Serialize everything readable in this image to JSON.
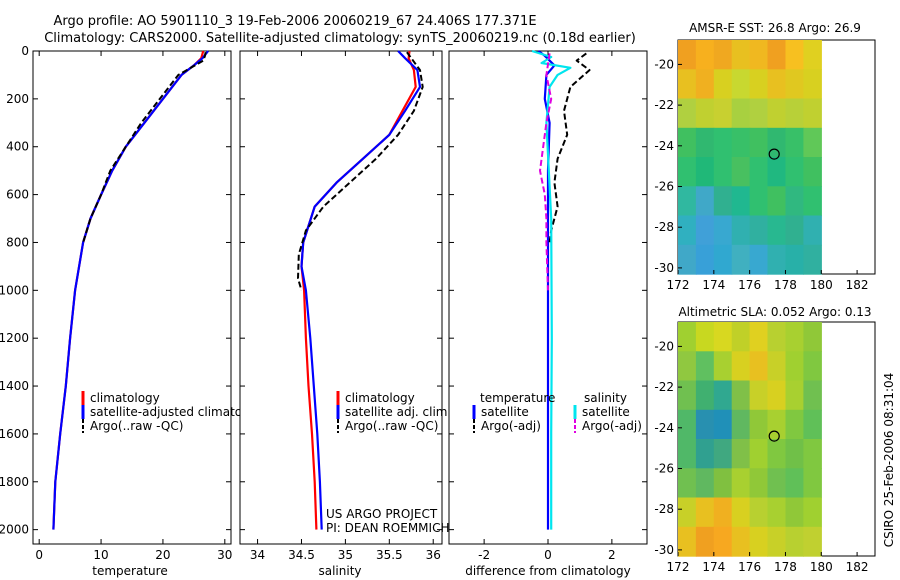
{
  "header": {
    "line1": "Argo profile: AO 5901110_3 19-Feb-2006 20060219_67 24.406S 177.371E",
    "line2": "Climatology: CARS2000. Satellite-adjusted climatology: synTS_20060219.nc (0.18d earlier)"
  },
  "side_label": "CSIRO 25-Feb-2006 08:31:04",
  "colors": {
    "red": "#ff0000",
    "blue": "#0000ff",
    "black": "#000000",
    "cyan": "#00e5ee",
    "magenta": "#e000e0"
  },
  "chart_data": [
    {
      "type": "line",
      "xlabel": "temperature",
      "xlim": [
        -1,
        31
      ],
      "ylim": [
        2060,
        0
      ],
      "xticks": [
        0,
        10,
        20,
        30
      ],
      "yticks": [
        0,
        200,
        400,
        600,
        800,
        1000,
        1200,
        1400,
        1600,
        1800,
        2000
      ],
      "legend": {
        "placement": "bottom-center",
        "entries": [
          "climatology",
          "satellite-adjusted climatology",
          "Argo(..raw -QC)"
        ]
      },
      "series": [
        {
          "name": "climatology",
          "color": "red",
          "dash": "solid",
          "x": [
            26.5,
            26.2,
            25,
            23,
            20,
            17,
            14,
            11.8,
            10,
            8.3,
            7.1,
            5.8,
            5,
            4.3,
            3.4,
            2.6,
            2.3
          ],
          "y": [
            0,
            30,
            60,
            100,
            200,
            300,
            400,
            500,
            600,
            700,
            800,
            1000,
            1200,
            1400,
            1600,
            1800,
            2000
          ]
        },
        {
          "name": "satellite-adjusted climatology",
          "color": "blue",
          "dash": "solid",
          "x": [
            27.3,
            26.4,
            25,
            23,
            20,
            17,
            14,
            11.8,
            10,
            8.3,
            7.1,
            5.8,
            5,
            4.3,
            3.4,
            2.6,
            2.3
          ],
          "y": [
            0,
            30,
            60,
            100,
            200,
            300,
            400,
            500,
            600,
            700,
            800,
            1000,
            1200,
            1400,
            1600,
            1800,
            2000
          ]
        },
        {
          "name": "Argo(..raw -QC)",
          "color": "black",
          "dash": "dashed",
          "x": [
            26.9,
            26.8,
            26.5,
            24.5,
            22.5,
            19.5,
            16.5,
            14,
            11.5,
            10,
            8.3,
            7.1
          ],
          "y": [
            5,
            20,
            40,
            70,
            100,
            200,
            300,
            400,
            500,
            600,
            700,
            800
          ]
        }
      ]
    },
    {
      "type": "line",
      "xlabel": "salinity",
      "xlim": [
        33.8,
        36.1
      ],
      "ylim": [
        2060,
        0
      ],
      "xticks": [
        34,
        34.5,
        35,
        35.5,
        36
      ],
      "legend": {
        "placement": "bottom-center",
        "entries": [
          "climatology",
          "satellite adj. clim.",
          "Argo(..raw -QC)"
        ]
      },
      "annotations": [
        "US ARGO PROJECT",
        "PI: DEAN ROEMMICH"
      ],
      "series": [
        {
          "name": "climatology",
          "color": "red",
          "dash": "solid",
          "x": [
            35.73,
            35.72,
            35.78,
            35.8,
            35.65,
            35.5,
            35.2,
            34.9,
            34.65,
            34.52,
            34.5,
            34.53,
            34.55,
            34.58,
            34.62,
            34.65,
            34.67
          ],
          "y": [
            0,
            30,
            80,
            150,
            250,
            350,
            450,
            550,
            650,
            800,
            900,
            1000,
            1200,
            1400,
            1600,
            1800,
            2000
          ]
        },
        {
          "name": "satellite adj. clim.",
          "color": "blue",
          "dash": "solid",
          "x": [
            35.6,
            35.68,
            35.82,
            35.85,
            35.68,
            35.5,
            35.2,
            34.9,
            34.65,
            34.52,
            34.5,
            34.55,
            34.6,
            34.64,
            34.68,
            34.71,
            34.73
          ],
          "y": [
            0,
            30,
            80,
            150,
            250,
            350,
            450,
            550,
            650,
            800,
            900,
            1000,
            1200,
            1400,
            1600,
            1800,
            2000
          ]
        },
        {
          "name": "Argo(..raw -QC)",
          "color": "black",
          "dash": "dashed",
          "x": [
            35.7,
            35.75,
            35.85,
            35.88,
            35.78,
            35.6,
            35.35,
            35.05,
            34.75,
            34.55,
            34.47,
            34.46,
            34.5
          ],
          "y": [
            5,
            30,
            80,
            150,
            250,
            350,
            450,
            550,
            650,
            750,
            850,
            950,
            1000
          ]
        }
      ]
    },
    {
      "type": "line",
      "xlabel": "difference from climatology",
      "xlim": [
        -3.1,
        3.1
      ],
      "ylim": [
        2060,
        0
      ],
      "xticks": [
        -2,
        0,
        2
      ],
      "legend": {
        "placement": "bottom",
        "groups": [
          "temperature",
          "salinity"
        ],
        "entries": [
          "satellite",
          "Argo(-adj)",
          "satellite",
          "Argo(-adj)"
        ]
      },
      "series": [
        {
          "name": "temperature satellite",
          "color": "blue",
          "dash": "solid",
          "x": [
            -0.3,
            -0.1,
            0.2,
            -0.05,
            -0.1,
            0.05,
            0,
            0,
            0,
            0,
            0
          ],
          "y": [
            0,
            20,
            60,
            100,
            200,
            300,
            500,
            800,
            1200,
            1600,
            2000
          ]
        },
        {
          "name": "temperature Argo(-adj)",
          "color": "black",
          "dash": "dashed",
          "x": [
            1.2,
            0.9,
            1.3,
            0.7,
            0.5,
            0.6,
            0.3,
            0.2,
            0.3,
            0.1,
            0.05
          ],
          "y": [
            10,
            40,
            80,
            150,
            250,
            350,
            450,
            550,
            650,
            750,
            800
          ]
        },
        {
          "name": "salinity satellite",
          "color": "cyan",
          "dash": "solid",
          "x": [
            -0.5,
            0.1,
            -0.2,
            0.7,
            0.3,
            0.05,
            -0.05,
            0.1,
            0.12,
            0.1,
            0.1
          ],
          "y": [
            0,
            25,
            50,
            70,
            100,
            150,
            300,
            700,
            1200,
            1600,
            2000
          ]
        },
        {
          "name": "salinity Argo(-adj)",
          "color": "magenta",
          "dash": "dashed",
          "x": [
            0.05,
            -0.05,
            0.1,
            -0.05,
            -0.15,
            -0.25,
            -0.1,
            -0.05,
            -0.05,
            0
          ],
          "y": [
            10,
            100,
            200,
            300,
            400,
            500,
            600,
            700,
            800,
            1000
          ]
        }
      ]
    },
    {
      "type": "heatmap",
      "title": "AMSR-E SST: 26.8 Argo: 26.9",
      "xlim": [
        172,
        183
      ],
      "ylim": [
        -30.3,
        -18.8
      ],
      "xticks": [
        172,
        174,
        176,
        178,
        180,
        182
      ],
      "yticks": [
        -20,
        -22,
        -24,
        -26,
        -28,
        -30
      ],
      "data_extent_x": [
        172,
        180
      ],
      "profile_marker": {
        "lon": 177.371,
        "lat": -24.406
      },
      "field": [
        [
          "#f0a020",
          "#f7b01e",
          "#f0a820",
          "#e8c020",
          "#f0b820",
          "#f0a020",
          "#f7c020",
          "#e0d020"
        ],
        [
          "#e8c020",
          "#f0b020",
          "#d8d020",
          "#c8d830",
          "#d8d020",
          "#e8c020",
          "#e0c820",
          "#d8d020"
        ],
        [
          "#b0d040",
          "#c0d030",
          "#c8d030",
          "#a8d040",
          "#b0d040",
          "#c0d030",
          "#b8d038",
          "#c0d030"
        ],
        [
          "#40c060",
          "#30b870",
          "#30c070",
          "#38c068",
          "#40c060",
          "#30b870",
          "#38c068",
          "#60c858"
        ],
        [
          "#30c070",
          "#20b878",
          "#30c070",
          "#48c060",
          "#30c070",
          "#20b880",
          "#30c070",
          "#40c060"
        ],
        [
          "#30b8a0",
          "#40a8c8",
          "#30b090",
          "#20b890",
          "#30c070",
          "#40c060",
          "#30b880",
          "#30c070"
        ],
        [
          "#30b0c0",
          "#40a0d8",
          "#38a8d0",
          "#30b0b0",
          "#30b0a0",
          "#28b890",
          "#30b090",
          "#30b0b0"
        ],
        [
          "#40a8c8",
          "#38a0d8",
          "#30a8d0",
          "#40b0c0",
          "#38a8d0",
          "#30b0b0",
          "#28b0a8",
          "#30b0a0"
        ]
      ]
    },
    {
      "type": "heatmap",
      "title": "Altimetric SLA: 0.052 Argo: 0.13",
      "xlim": [
        172,
        183
      ],
      "ylim": [
        -30.3,
        -18.8
      ],
      "xticks": [
        172,
        174,
        176,
        178,
        180,
        182
      ],
      "yticks": [
        -20,
        -22,
        -24,
        -26,
        -28,
        -30
      ],
      "data_extent_x": [
        172,
        180
      ],
      "profile_marker": {
        "lon": 177.371,
        "lat": -24.406
      },
      "field": [
        [
          "#a0d030",
          "#c8d820",
          "#d8d820",
          "#c0d028",
          "#e0d020",
          "#b8d030",
          "#a8d030",
          "#90c838"
        ],
        [
          "#90c840",
          "#60c060",
          "#a8d030",
          "#d8d020",
          "#e8c020",
          "#c8d028",
          "#a0d030",
          "#80c840"
        ],
        [
          "#70c050",
          "#40b070",
          "#30a890",
          "#80c048",
          "#c8d028",
          "#d8d020",
          "#a8d030",
          "#70c050"
        ],
        [
          "#50b868",
          "#2890b0",
          "#2090b8",
          "#60b860",
          "#90c838",
          "#a8d030",
          "#80c840",
          "#60c058"
        ],
        [
          "#50b868",
          "#30a090",
          "#40a880",
          "#80c048",
          "#a0d030",
          "#80c840",
          "#70c048",
          "#80c840"
        ],
        [
          "#70c050",
          "#60b860",
          "#80c040",
          "#a8d030",
          "#90c838",
          "#70c050",
          "#60c058",
          "#80c840"
        ],
        [
          "#c8d028",
          "#e8c020",
          "#f0b020",
          "#d8d020",
          "#b8d030",
          "#a8d030",
          "#90c838",
          "#a0d030"
        ],
        [
          "#e8c020",
          "#f0a020",
          "#f7a820",
          "#e8c020",
          "#d8d020",
          "#c8d028",
          "#b8d030",
          "#c0d030"
        ]
      ]
    }
  ]
}
